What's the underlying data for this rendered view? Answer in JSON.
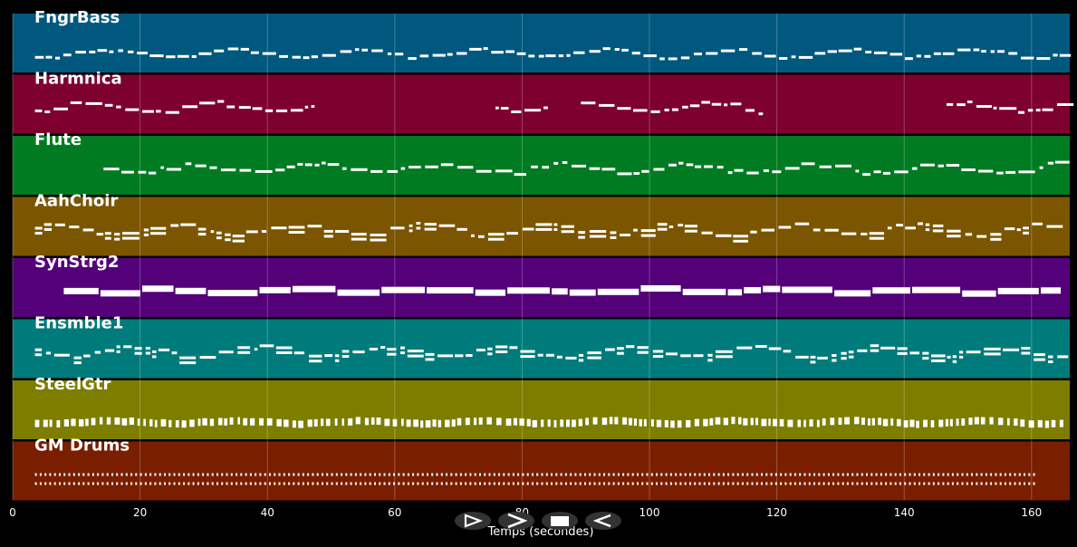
{
  "axis": {
    "xlabel": "Temps (secondes)",
    "xlim": [
      0,
      166
    ],
    "ticks": [
      0,
      20,
      40,
      60,
      80,
      100,
      120,
      140,
      160
    ]
  },
  "tracks": [
    {
      "name": "FngrBass",
      "color": "#00587f",
      "style": "bass"
    },
    {
      "name": "Harmnica",
      "color": "#7d002e",
      "style": "harm"
    },
    {
      "name": "Flute",
      "color": "#007b22",
      "style": "flute"
    },
    {
      "name": "AahChoir",
      "color": "#7b5500",
      "style": "choir"
    },
    {
      "name": "SynStrg2",
      "color": "#540079",
      "style": "strings"
    },
    {
      "name": "Ensmble1",
      "color": "#007b7b",
      "style": "ens"
    },
    {
      "name": "SteelGtr",
      "color": "#7d7d00",
      "style": "gtr"
    },
    {
      "name": "GM Drums",
      "color": "#7a1e00",
      "style": "drums"
    }
  ],
  "controls": [
    {
      "name": "play-button",
      "icon": "play-icon"
    },
    {
      "name": "fast-forward-button",
      "icon": "fast-forward-icon"
    },
    {
      "name": "stop-button",
      "icon": "stop-icon"
    },
    {
      "name": "rewind-button",
      "icon": "rewind-icon"
    }
  ]
}
